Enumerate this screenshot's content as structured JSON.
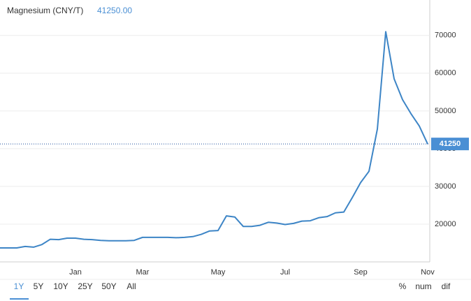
{
  "chart_data": {
    "type": "line",
    "title": "Magnesium (CNY/T)",
    "price_label": "41250.00",
    "current": 41250,
    "categories": [
      null,
      null,
      null,
      null,
      null,
      null,
      null,
      null,
      null,
      "Jan",
      null,
      null,
      null,
      null,
      null,
      null,
      null,
      "Mar",
      null,
      null,
      null,
      null,
      null,
      null,
      null,
      null,
      "May",
      null,
      null,
      null,
      null,
      null,
      null,
      null,
      "Jul",
      null,
      null,
      null,
      null,
      null,
      null,
      null,
      null,
      "Sep",
      null,
      null,
      null,
      null,
      null,
      null,
      null,
      "Nov"
    ],
    "series": [
      {
        "name": "Magnesium",
        "color": "#3d85c6",
        "values": [
          13700,
          13700,
          13700,
          14100,
          13900,
          14600,
          16000,
          15900,
          16300,
          16300,
          16000,
          15900,
          15700,
          15600,
          15600,
          15600,
          15700,
          16500,
          16500,
          16500,
          16500,
          16400,
          16500,
          16700,
          17300,
          18200,
          18300,
          22200,
          21900,
          19400,
          19400,
          19700,
          20500,
          20300,
          19900,
          20200,
          20800,
          20900,
          21700,
          22000,
          23000,
          23200,
          27000,
          31000,
          34000,
          45200,
          71000,
          58500,
          53000,
          49300,
          46000,
          41250
        ]
      }
    ],
    "ylim": [
      10000,
      79400
    ],
    "yticks": [
      20000,
      30000,
      40000,
      50000,
      60000,
      70000
    ],
    "grid": true
  },
  "controls": {
    "ranges": [
      "1Y",
      "5Y",
      "10Y",
      "25Y",
      "50Y",
      "All"
    ],
    "modes": [
      "%",
      "num",
      "dif"
    ]
  }
}
